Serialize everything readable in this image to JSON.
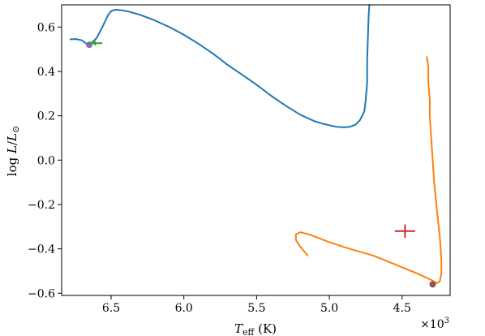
{
  "chart_data": {
    "type": "line",
    "title": "",
    "xlabel": {
      "symbol": "T",
      "sub": "eff",
      "unit": " (K)"
    },
    "ylabel": {
      "prefix": "log ",
      "symbol": "L",
      "slash": "/",
      "symbol2": "L",
      "sub": "⊙"
    },
    "x_multiplier": {
      "base": "×10",
      "exp": "3"
    },
    "xlim": [
      6.84,
      4.17
    ],
    "ylim": [
      -0.61,
      0.7
    ],
    "x_inverted": true,
    "grid": false,
    "legend": "none",
    "x_ticks": [
      6.5,
      6.0,
      5.5,
      5.0,
      4.5
    ],
    "x_tick_labels": [
      "6.5",
      "6.0",
      "5.5",
      "5.0",
      "4.5"
    ],
    "y_ticks": [
      0.6,
      0.4,
      0.2,
      0.0,
      -0.2,
      -0.4,
      -0.6
    ],
    "y_tick_labels": [
      "0.6",
      "0.4",
      "0.2",
      "0.0",
      "−0.2",
      "−0.4",
      "−0.6"
    ],
    "series": [
      {
        "color": "#1f77b4",
        "x": [
          6.78,
          6.74,
          6.7,
          6.68,
          6.66,
          6.64,
          6.6,
          6.56,
          6.52,
          6.5,
          6.48,
          6.46,
          6.43,
          6.38,
          6.3,
          6.2,
          6.1,
          6.0,
          5.9,
          5.8,
          5.7,
          5.6,
          5.5,
          5.4,
          5.3,
          5.2,
          5.1,
          5.05,
          5.0,
          4.95,
          4.9,
          4.86,
          4.82,
          4.79,
          4.76,
          4.75,
          4.74,
          4.74,
          4.735,
          4.73,
          4.725
        ],
        "y": [
          0.545,
          0.546,
          0.54,
          0.53,
          0.52,
          0.525,
          0.55,
          0.6,
          0.655,
          0.672,
          0.677,
          0.678,
          0.676,
          0.67,
          0.655,
          0.63,
          0.6,
          0.565,
          0.525,
          0.48,
          0.43,
          0.385,
          0.34,
          0.29,
          0.245,
          0.205,
          0.175,
          0.165,
          0.157,
          0.15,
          0.148,
          0.15,
          0.16,
          0.18,
          0.22,
          0.27,
          0.35,
          0.45,
          0.55,
          0.65,
          0.7
        ]
      },
      {
        "color": "#ff7f0e",
        "x": [
          5.15,
          5.2,
          5.23,
          5.23,
          5.2,
          5.14,
          5.0,
          4.86,
          4.7,
          4.55,
          4.4,
          4.3,
          4.26,
          4.24,
          4.23,
          4.23,
          4.24,
          4.26,
          4.28,
          4.29,
          4.3,
          4.31,
          4.31,
          4.32,
          4.32,
          4.33
        ],
        "y": [
          -0.43,
          -0.39,
          -0.36,
          -0.335,
          -0.325,
          -0.335,
          -0.37,
          -0.4,
          -0.43,
          -0.47,
          -0.51,
          -0.54,
          -0.555,
          -0.545,
          -0.51,
          -0.45,
          -0.35,
          -0.23,
          -0.1,
          0.0,
          0.1,
          0.2,
          0.27,
          0.35,
          0.42,
          0.465
        ]
      }
    ],
    "markers": [
      {
        "type": "dot",
        "color": "#9467bd",
        "x": 6.65,
        "y": 0.52
      },
      {
        "type": "plus",
        "color": "#2ca02c",
        "x": 6.61,
        "y": 0.527,
        "xerr": 0.05,
        "yerr": 0.01
      },
      {
        "type": "plus",
        "color": "#d62728",
        "x": 4.48,
        "y": -0.32,
        "xerr": 0.07,
        "yerr": 0.03
      },
      {
        "type": "dot",
        "color": "#8c564b",
        "x": 4.29,
        "y": -0.56
      }
    ]
  }
}
